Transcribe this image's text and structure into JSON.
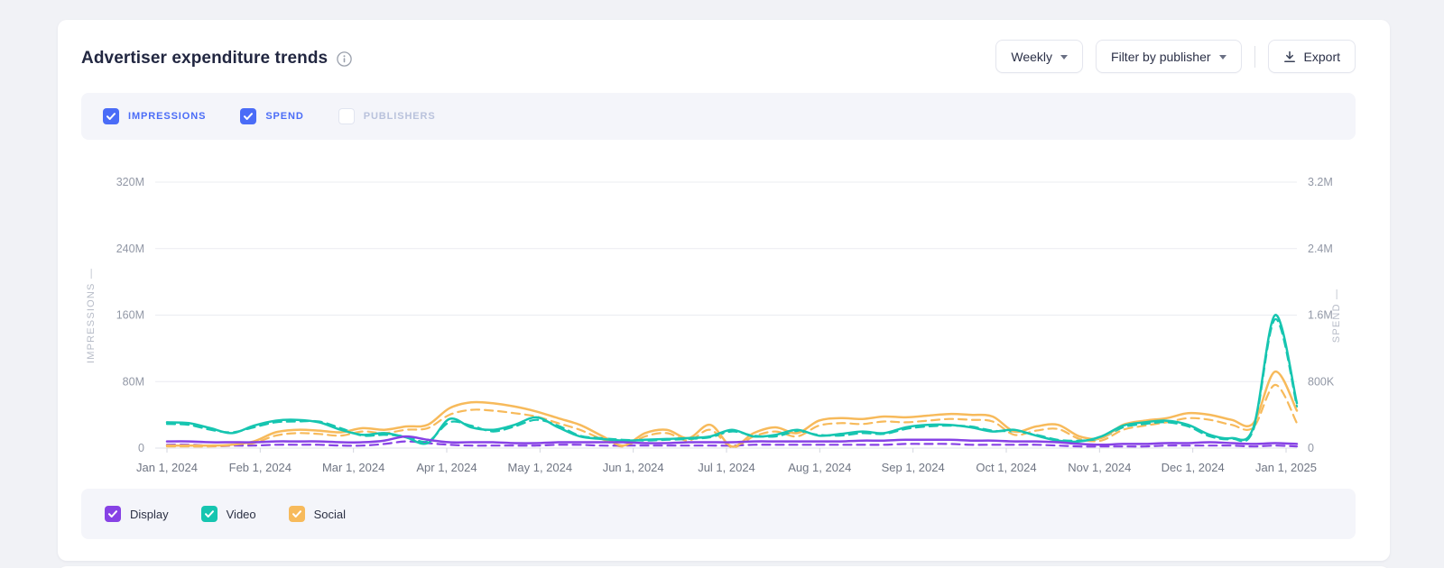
{
  "header": {
    "title": "Advertiser expenditure trends",
    "period_button": "Weekly",
    "filter_button": "Filter by publisher",
    "export_button": "Export"
  },
  "metric_toggles": [
    {
      "label": "IMPRESSIONS",
      "checked": true
    },
    {
      "label": "SPEND",
      "checked": true
    },
    {
      "label": "PUBLISHERS",
      "checked": false
    }
  ],
  "legend": [
    {
      "label": "Display",
      "color": "#8742e5",
      "checked": true
    },
    {
      "label": "Video",
      "color": "#16c5b0",
      "checked": true
    },
    {
      "label": "Social",
      "color": "#f7ba5b",
      "checked": true
    }
  ],
  "colors": {
    "accent_blue": "#4a6cf7",
    "display_purple": "#8742e5",
    "video_teal": "#16c5b0",
    "social_orange": "#f7ba5b",
    "grid": "#ebecf1",
    "baseline": "#dfe1e8",
    "axis_text": "#9298a6",
    "x_axis_text": "#6f7583",
    "axis_title_text": "#b6bbc7",
    "unchecked_label": "#b9c2dc"
  },
  "chart_data": {
    "type": "line",
    "x_labels": [
      "Jan 1, 2024",
      "Feb 1, 2024",
      "Mar 1, 2024",
      "Apr 1, 2024",
      "May 1, 2024",
      "Jun 1, 2024",
      "Jul 1, 2024",
      "Aug 1, 2024",
      "Sep 1, 2024",
      "Oct 1, 2024",
      "Nov 1, 2024",
      "Dec 1, 2024",
      "Jan 1, 2025"
    ],
    "left_axis": {
      "title": "IMPRESSIONS",
      "ticks": [
        "0",
        "80M",
        "160M",
        "240M",
        "320M"
      ],
      "max": 320,
      "unit": "impressions (millions)"
    },
    "right_axis": {
      "title": "SPEND",
      "ticks": [
        "0",
        "800K",
        "1.6M",
        "2.4M",
        "3.2M"
      ],
      "max": 3.2,
      "unit": "spend (millions USD)"
    },
    "grid": true,
    "legend_position": "bottom",
    "interval": "weekly",
    "series": [
      {
        "name": "Social spend",
        "axis": "right",
        "color": "#f7ba5b",
        "style": "dashed",
        "values": [
          0.02,
          0.02,
          0.02,
          0.03,
          0.06,
          0.15,
          0.18,
          0.17,
          0.15,
          0.2,
          0.18,
          0.22,
          0.24,
          0.4,
          0.46,
          0.45,
          0.42,
          0.38,
          0.3,
          0.22,
          0.11,
          0.02,
          0.14,
          0.18,
          0.09,
          0.22,
          0.01,
          0.14,
          0.2,
          0.14,
          0.27,
          0.3,
          0.29,
          0.32,
          0.31,
          0.33,
          0.35,
          0.34,
          0.32,
          0.16,
          0.21,
          0.23,
          0.11,
          0.09,
          0.22,
          0.27,
          0.31,
          0.36,
          0.34,
          0.28,
          0.25,
          0.76,
          0.3
        ]
      },
      {
        "name": "Video spend",
        "axis": "right",
        "color": "#16c5b0",
        "style": "dashed",
        "values": [
          0.29,
          0.28,
          0.22,
          0.19,
          0.25,
          0.31,
          0.32,
          0.32,
          0.24,
          0.15,
          0.16,
          0.14,
          0.08,
          0.31,
          0.27,
          0.2,
          0.26,
          0.34,
          0.27,
          0.15,
          0.12,
          0.1,
          0.09,
          0.1,
          0.11,
          0.13,
          0.2,
          0.15,
          0.14,
          0.2,
          0.16,
          0.15,
          0.18,
          0.17,
          0.23,
          0.26,
          0.27,
          0.26,
          0.21,
          0.2,
          0.16,
          0.1,
          0.09,
          0.12,
          0.25,
          0.29,
          0.31,
          0.26,
          0.14,
          0.11,
          0.22,
          1.55,
          0.5
        ]
      },
      {
        "name": "Display spend",
        "axis": "right",
        "color": "#8742e5",
        "style": "dashed",
        "values": [
          0.04,
          0.04,
          0.03,
          0.03,
          0.03,
          0.04,
          0.04,
          0.04,
          0.03,
          0.03,
          0.05,
          0.08,
          0.06,
          0.04,
          0.03,
          0.03,
          0.03,
          0.03,
          0.04,
          0.04,
          0.03,
          0.03,
          0.03,
          0.03,
          0.03,
          0.03,
          0.03,
          0.04,
          0.04,
          0.04,
          0.04,
          0.04,
          0.04,
          0.04,
          0.05,
          0.05,
          0.05,
          0.04,
          0.04,
          0.04,
          0.04,
          0.03,
          0.02,
          0.02,
          0.02,
          0.02,
          0.03,
          0.03,
          0.03,
          0.03,
          0.02,
          0.03,
          0.02
        ]
      },
      {
        "name": "Social impressions",
        "axis": "left",
        "color": "#f7ba5b",
        "style": "solid",
        "values": [
          3,
          3,
          3,
          4,
          8,
          19,
          22,
          21,
          19,
          24,
          22,
          26,
          28,
          48,
          55,
          54,
          50,
          44,
          36,
          28,
          15,
          3,
          18,
          22,
          12,
          28,
          2,
          18,
          25,
          18,
          33,
          36,
          35,
          38,
          37,
          39,
          41,
          40,
          38,
          20,
          26,
          28,
          14,
          12,
          28,
          33,
          36,
          42,
          40,
          34,
          30,
          92,
          45
        ]
      },
      {
        "name": "Video impressions",
        "axis": "left",
        "color": "#16c5b0",
        "style": "solid",
        "values": [
          31,
          30,
          24,
          18,
          27,
          33,
          34,
          31,
          22,
          16,
          18,
          13,
          6,
          35,
          25,
          22,
          28,
          37,
          25,
          14,
          11,
          9,
          10,
          11,
          12,
          14,
          22,
          14,
          16,
          22,
          15,
          17,
          20,
          18,
          25,
          28,
          28,
          25,
          20,
          22,
          15,
          9,
          8,
          14,
          27,
          31,
          33,
          28,
          16,
          12,
          25,
          160,
          54
        ]
      },
      {
        "name": "Display impressions",
        "axis": "left",
        "color": "#8742e5",
        "style": "solid",
        "values": [
          8,
          8,
          7,
          7,
          7,
          8,
          8,
          8,
          7,
          7,
          9,
          14,
          10,
          7,
          7,
          7,
          6,
          6,
          7,
          7,
          7,
          7,
          6,
          6,
          7,
          7,
          7,
          8,
          8,
          8,
          8,
          8,
          9,
          9,
          10,
          10,
          10,
          9,
          9,
          8,
          8,
          7,
          5,
          4,
          5,
          5,
          6,
          6,
          7,
          6,
          5,
          6,
          5
        ]
      }
    ]
  }
}
